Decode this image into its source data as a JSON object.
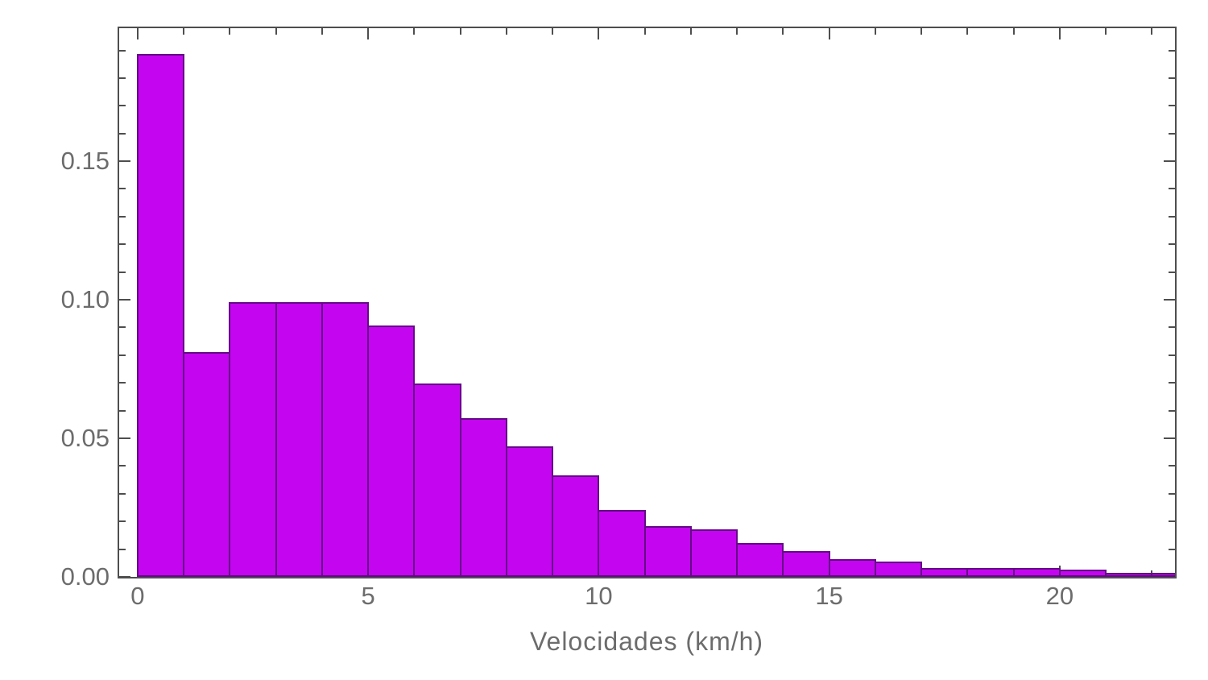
{
  "figure": {
    "background": "#ffffff"
  },
  "chart_data": {
    "type": "bar",
    "chart_kind": "histogram-pdf",
    "title": "",
    "xlabel": "Velocidades (km/h)",
    "ylabel": "",
    "bin_width": 1,
    "bin_starts": [
      0,
      1,
      2,
      3,
      4,
      5,
      6,
      7,
      8,
      9,
      10,
      11,
      12,
      13,
      14,
      15,
      16,
      17,
      18,
      19,
      20,
      21,
      22
    ],
    "values": [
      0.188,
      0.0805,
      0.0985,
      0.0985,
      0.0985,
      0.0901,
      0.0692,
      0.0568,
      0.0466,
      0.0362,
      0.0235,
      0.0177,
      0.0165,
      0.0115,
      0.0087,
      0.0058,
      0.005,
      0.0025,
      0.0025,
      0.0025,
      0.002,
      0.001,
      0.001
    ],
    "xlim": [
      -0.4,
      22.5
    ],
    "ylim": [
      0,
      0.198
    ],
    "x_major_ticks": [
      0,
      5,
      10,
      15,
      20
    ],
    "x_tick_labels": [
      "0",
      "5",
      "10",
      "15",
      "20"
    ],
    "x_minor_tick_step": 1,
    "y_major_ticks": [
      0,
      0.05,
      0.1,
      0.15
    ],
    "y_tick_labels": [
      "0.00",
      "0.05",
      "0.10",
      "0.15"
    ],
    "y_minor_tick_step": 0.01,
    "grid": false,
    "legend": null,
    "frame": "on",
    "ticks_direction": "inward",
    "colors": {
      "bar_fill": "#C406F0",
      "bar_edge": "#650A87",
      "frame": "#4E4E4E",
      "tick": "#4E4E4E",
      "label": "#6C6C6C"
    }
  }
}
